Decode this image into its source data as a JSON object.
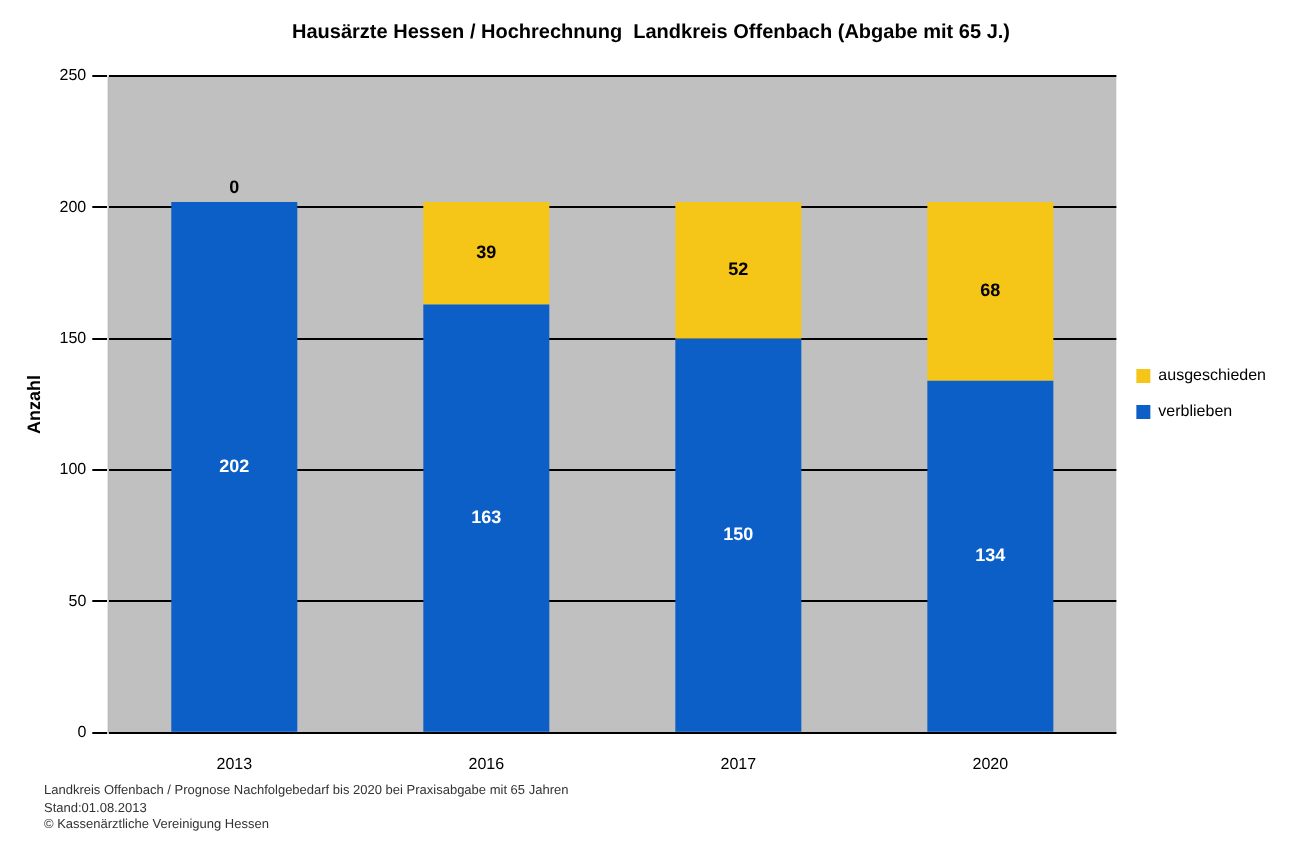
{
  "chart_data": {
    "type": "bar",
    "title": "Hausärzte Hessen / Hochrechnung  Landkreis Offenbach (Abgabe mit 65 J.)",
    "ylabel": "Anzahl",
    "categories": [
      "2013",
      "2016",
      "2017",
      "2020"
    ],
    "stacked": true,
    "series": [
      {
        "name": "verblieben",
        "color": "#0b5fc6",
        "values": [
          202,
          163,
          150,
          134
        ]
      },
      {
        "name": "ausgeschieden",
        "color": "#f5c518",
        "values": [
          0,
          39,
          52,
          68
        ]
      }
    ],
    "ylim": [
      0,
      250
    ],
    "yticks": [
      0,
      50,
      100,
      150,
      200,
      250
    ],
    "grid": "y",
    "legend": "right",
    "data_labels": true,
    "annotations": [
      "Landkreis Offenbach / Prognose Nachfolgebedarf bis 2020 bei Praxisabgabe mit 65 Jahren",
      "Stand:01.08.2013",
      "© Kassenärztliche Vereinigung Hessen"
    ]
  }
}
